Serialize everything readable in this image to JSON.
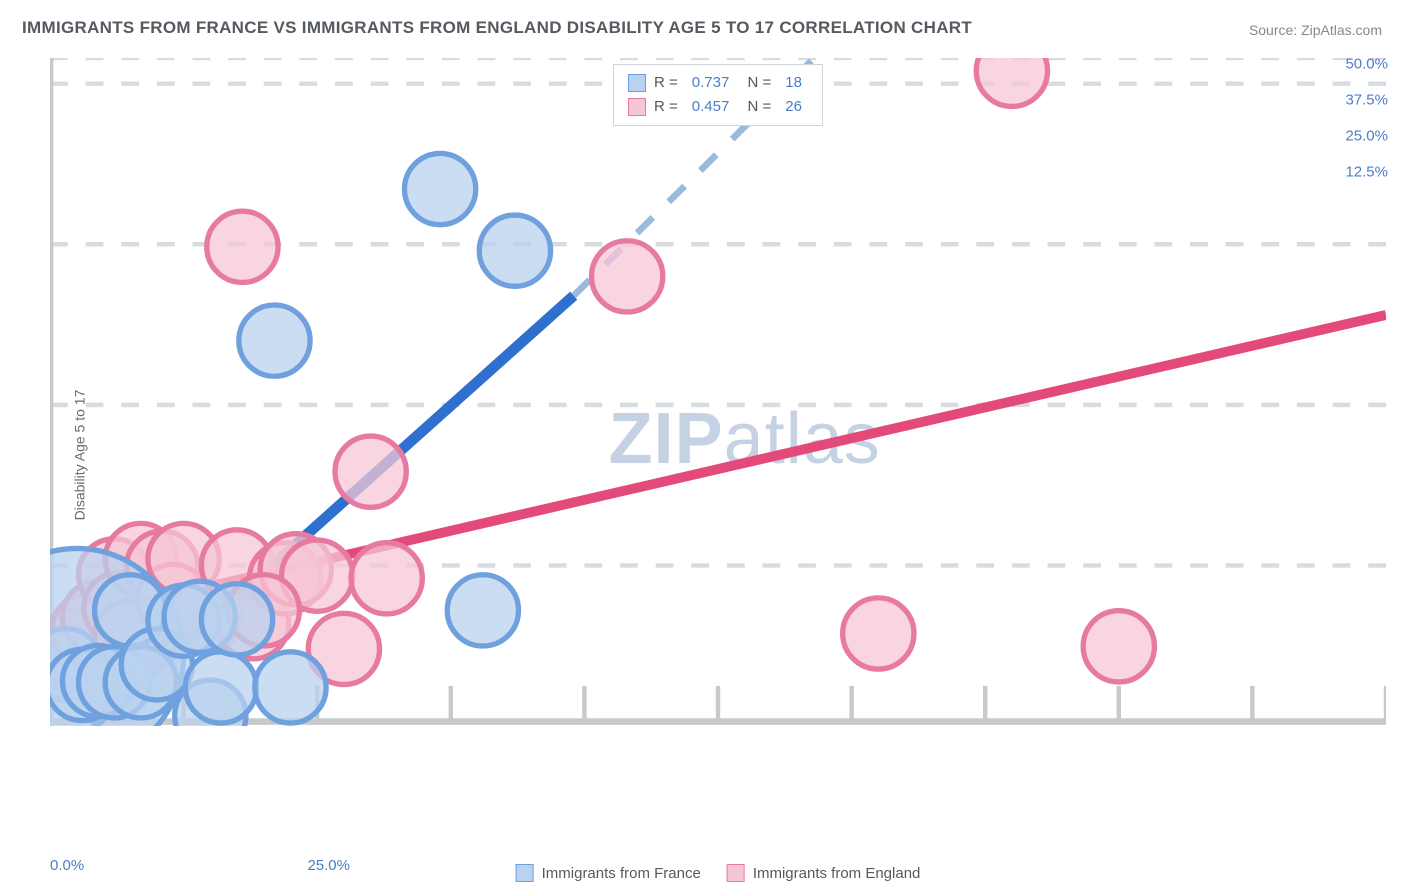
{
  "title": "IMMIGRANTS FROM FRANCE VS IMMIGRANTS FROM ENGLAND DISABILITY AGE 5 TO 17 CORRELATION CHART",
  "source": "Source: ZipAtlas.com",
  "ylabel": "Disability Age 5 to 17",
  "watermark_bold": "ZIP",
  "watermark_rest": "atlas",
  "chart": {
    "type": "scatter",
    "background_color": "#ffffff",
    "grid_color": "#d8dce0",
    "grid_dash": "4 4",
    "axis_color": "#c6cacd",
    "text_color": "#666c72",
    "tick_label_color": "#4a7ec9",
    "xlim": [
      0,
      25
    ],
    "ylim": [
      0,
      52
    ],
    "yticks": [
      12.5,
      25.0,
      37.5,
      50.0
    ],
    "ytick_labels": [
      "12.5%",
      "25.0%",
      "37.5%",
      "50.0%"
    ],
    "xticks": [
      0,
      5,
      10,
      25
    ],
    "xtick_labels": [
      "0.0%",
      "",
      "",
      "25.0%"
    ],
    "xtick_major_positions": [
      0,
      2.5,
      5,
      7.5,
      10,
      12.5,
      15,
      17.5,
      20,
      22.5,
      25
    ],
    "series": [
      {
        "name": "Immigrants from France",
        "color_fill": "#b9d2ef",
        "color_stroke": "#6fa1de",
        "marker_stroke_width": 1.2,
        "r_value": "0.737",
        "n_value": "18",
        "trend_color": "#2f6fd0",
        "trend_width": 2.4,
        "trend_dash_color": "#9cb9de",
        "trend": {
          "x1": 0.8,
          "y1": 0,
          "x2": 9.8,
          "y2": 33.5,
          "x2_ext": 14.3,
          "y2_ext": 52
        },
        "points": [
          {
            "x": 0.3,
            "y": 4.8,
            "r": 8
          },
          {
            "x": 0.5,
            "y": 5.5,
            "r": 24
          },
          {
            "x": 0.6,
            "y": 3.2,
            "r": 8
          },
          {
            "x": 0.9,
            "y": 3.5,
            "r": 8
          },
          {
            "x": 1.2,
            "y": 3.4,
            "r": 8
          },
          {
            "x": 1.5,
            "y": 9.0,
            "r": 8
          },
          {
            "x": 1.7,
            "y": 3.4,
            "r": 8
          },
          {
            "x": 2.0,
            "y": 4.8,
            "r": 8
          },
          {
            "x": 2.5,
            "y": 8.2,
            "r": 8
          },
          {
            "x": 2.8,
            "y": 8.5,
            "r": 8
          },
          {
            "x": 3.0,
            "y": 0.8,
            "r": 8
          },
          {
            "x": 3.2,
            "y": 3.0,
            "r": 8
          },
          {
            "x": 3.5,
            "y": 8.3,
            "r": 8
          },
          {
            "x": 4.2,
            "y": 30.0,
            "r": 8
          },
          {
            "x": 4.5,
            "y": 3.0,
            "r": 8
          },
          {
            "x": 7.3,
            "y": 41.8,
            "r": 8
          },
          {
            "x": 8.1,
            "y": 9.0,
            "r": 8
          },
          {
            "x": 8.7,
            "y": 37.0,
            "r": 8
          }
        ]
      },
      {
        "name": "Immigrants from England",
        "color_fill": "#f5c7d5",
        "color_stroke": "#e77aa0",
        "marker_stroke_width": 1.2,
        "r_value": "0.457",
        "n_value": "26",
        "trend_color": "#e34a7a",
        "trend_width": 2.2,
        "trend": {
          "x1": 0,
          "y1": 8.0,
          "x2": 25,
          "y2": 32.0
        },
        "points": [
          {
            "x": 0.4,
            "y": 6.2,
            "r": 8
          },
          {
            "x": 0.6,
            "y": 5.0,
            "r": 8
          },
          {
            "x": 0.7,
            "y": 7.5,
            "r": 8
          },
          {
            "x": 0.9,
            "y": 8.5,
            "r": 8
          },
          {
            "x": 1.2,
            "y": 11.8,
            "r": 8
          },
          {
            "x": 1.3,
            "y": 9.2,
            "r": 8
          },
          {
            "x": 1.5,
            "y": 7.0,
            "r": 8
          },
          {
            "x": 1.7,
            "y": 13.0,
            "r": 8
          },
          {
            "x": 2.1,
            "y": 12.4,
            "r": 8
          },
          {
            "x": 2.3,
            "y": 9.8,
            "r": 8
          },
          {
            "x": 2.5,
            "y": 13.0,
            "r": 8
          },
          {
            "x": 2.9,
            "y": 8.5,
            "r": 8
          },
          {
            "x": 3.5,
            "y": 12.5,
            "r": 8
          },
          {
            "x": 3.6,
            "y": 37.3,
            "r": 8
          },
          {
            "x": 3.8,
            "y": 8.0,
            "r": 8
          },
          {
            "x": 4.4,
            "y": 11.5,
            "r": 8
          },
          {
            "x": 4.6,
            "y": 12.2,
            "r": 8
          },
          {
            "x": 5.0,
            "y": 11.7,
            "r": 8
          },
          {
            "x": 5.5,
            "y": 6.0,
            "r": 8
          },
          {
            "x": 6.0,
            "y": 19.8,
            "r": 8
          },
          {
            "x": 6.3,
            "y": 11.5,
            "r": 8
          },
          {
            "x": 10.8,
            "y": 35.0,
            "r": 8
          },
          {
            "x": 15.5,
            "y": 7.2,
            "r": 8
          },
          {
            "x": 18.0,
            "y": 51.0,
            "r": 8
          },
          {
            "x": 20.0,
            "y": 6.2,
            "r": 8
          },
          {
            "x": 4.0,
            "y": 9.0,
            "r": 8
          }
        ]
      }
    ]
  },
  "legend_bottom": [
    {
      "label": "Immigrants from France",
      "fill": "#b9d2ef",
      "stroke": "#6fa1de"
    },
    {
      "label": "Immigrants from England",
      "fill": "#f5c7d5",
      "stroke": "#e77aa0"
    }
  ]
}
